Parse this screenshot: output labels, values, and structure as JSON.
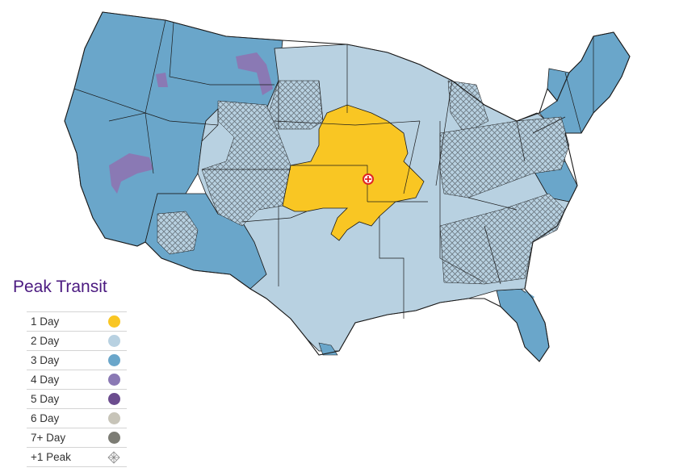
{
  "legend": {
    "title": "Peak Transit",
    "items": [
      {
        "label": "1 Day",
        "color": "#f9c623"
      },
      {
        "label": "2 Day",
        "color": "#b8d1e1"
      },
      {
        "label": "3 Day",
        "color": "#6aa6ca"
      },
      {
        "label": "4 Day",
        "color": "#8a79b4"
      },
      {
        "label": "5 Day",
        "color": "#6b4c8e"
      },
      {
        "label": "6 Day",
        "color": "#c7c4b8"
      },
      {
        "label": "7+ Day",
        "color": "#7c7c74"
      },
      {
        "label": "+1 Peak",
        "pattern": "crosshatch"
      }
    ]
  },
  "map": {
    "origin_marker": "pin-icon",
    "zones": [
      "1 Day",
      "2 Day",
      "3 Day",
      "4 Day",
      "+1 Peak"
    ]
  }
}
